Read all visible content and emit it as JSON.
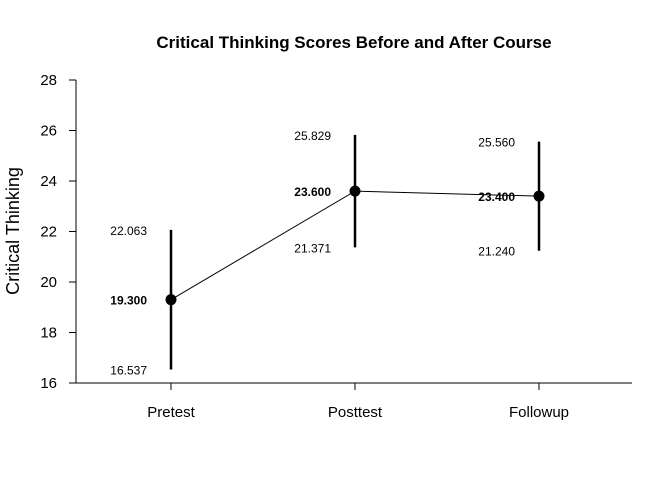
{
  "chart_data": {
    "type": "line",
    "title": "Critical Thinking Scores Before and After Course",
    "xlabel": "",
    "ylabel": "Critical Thinking",
    "categories": [
      "Pretest",
      "Posttest",
      "Followup"
    ],
    "series": [
      {
        "values": [
          19.3,
          23.6,
          23.4
        ],
        "lower": [
          16.537,
          21.371,
          21.24
        ],
        "upper": [
          22.063,
          25.829,
          25.56
        ]
      }
    ],
    "mean_labels": [
      "19.300",
      "23.600",
      "23.400"
    ],
    "lower_labels": [
      "16.537",
      "21.371",
      "21.240"
    ],
    "upper_labels": [
      "22.063",
      "25.829",
      "25.560"
    ],
    "yticks": [
      16,
      18,
      20,
      22,
      24,
      26,
      28
    ],
    "ylim": [
      16,
      28
    ],
    "grid": false,
    "colors": {
      "line": "#000000",
      "point": "#000000"
    }
  }
}
